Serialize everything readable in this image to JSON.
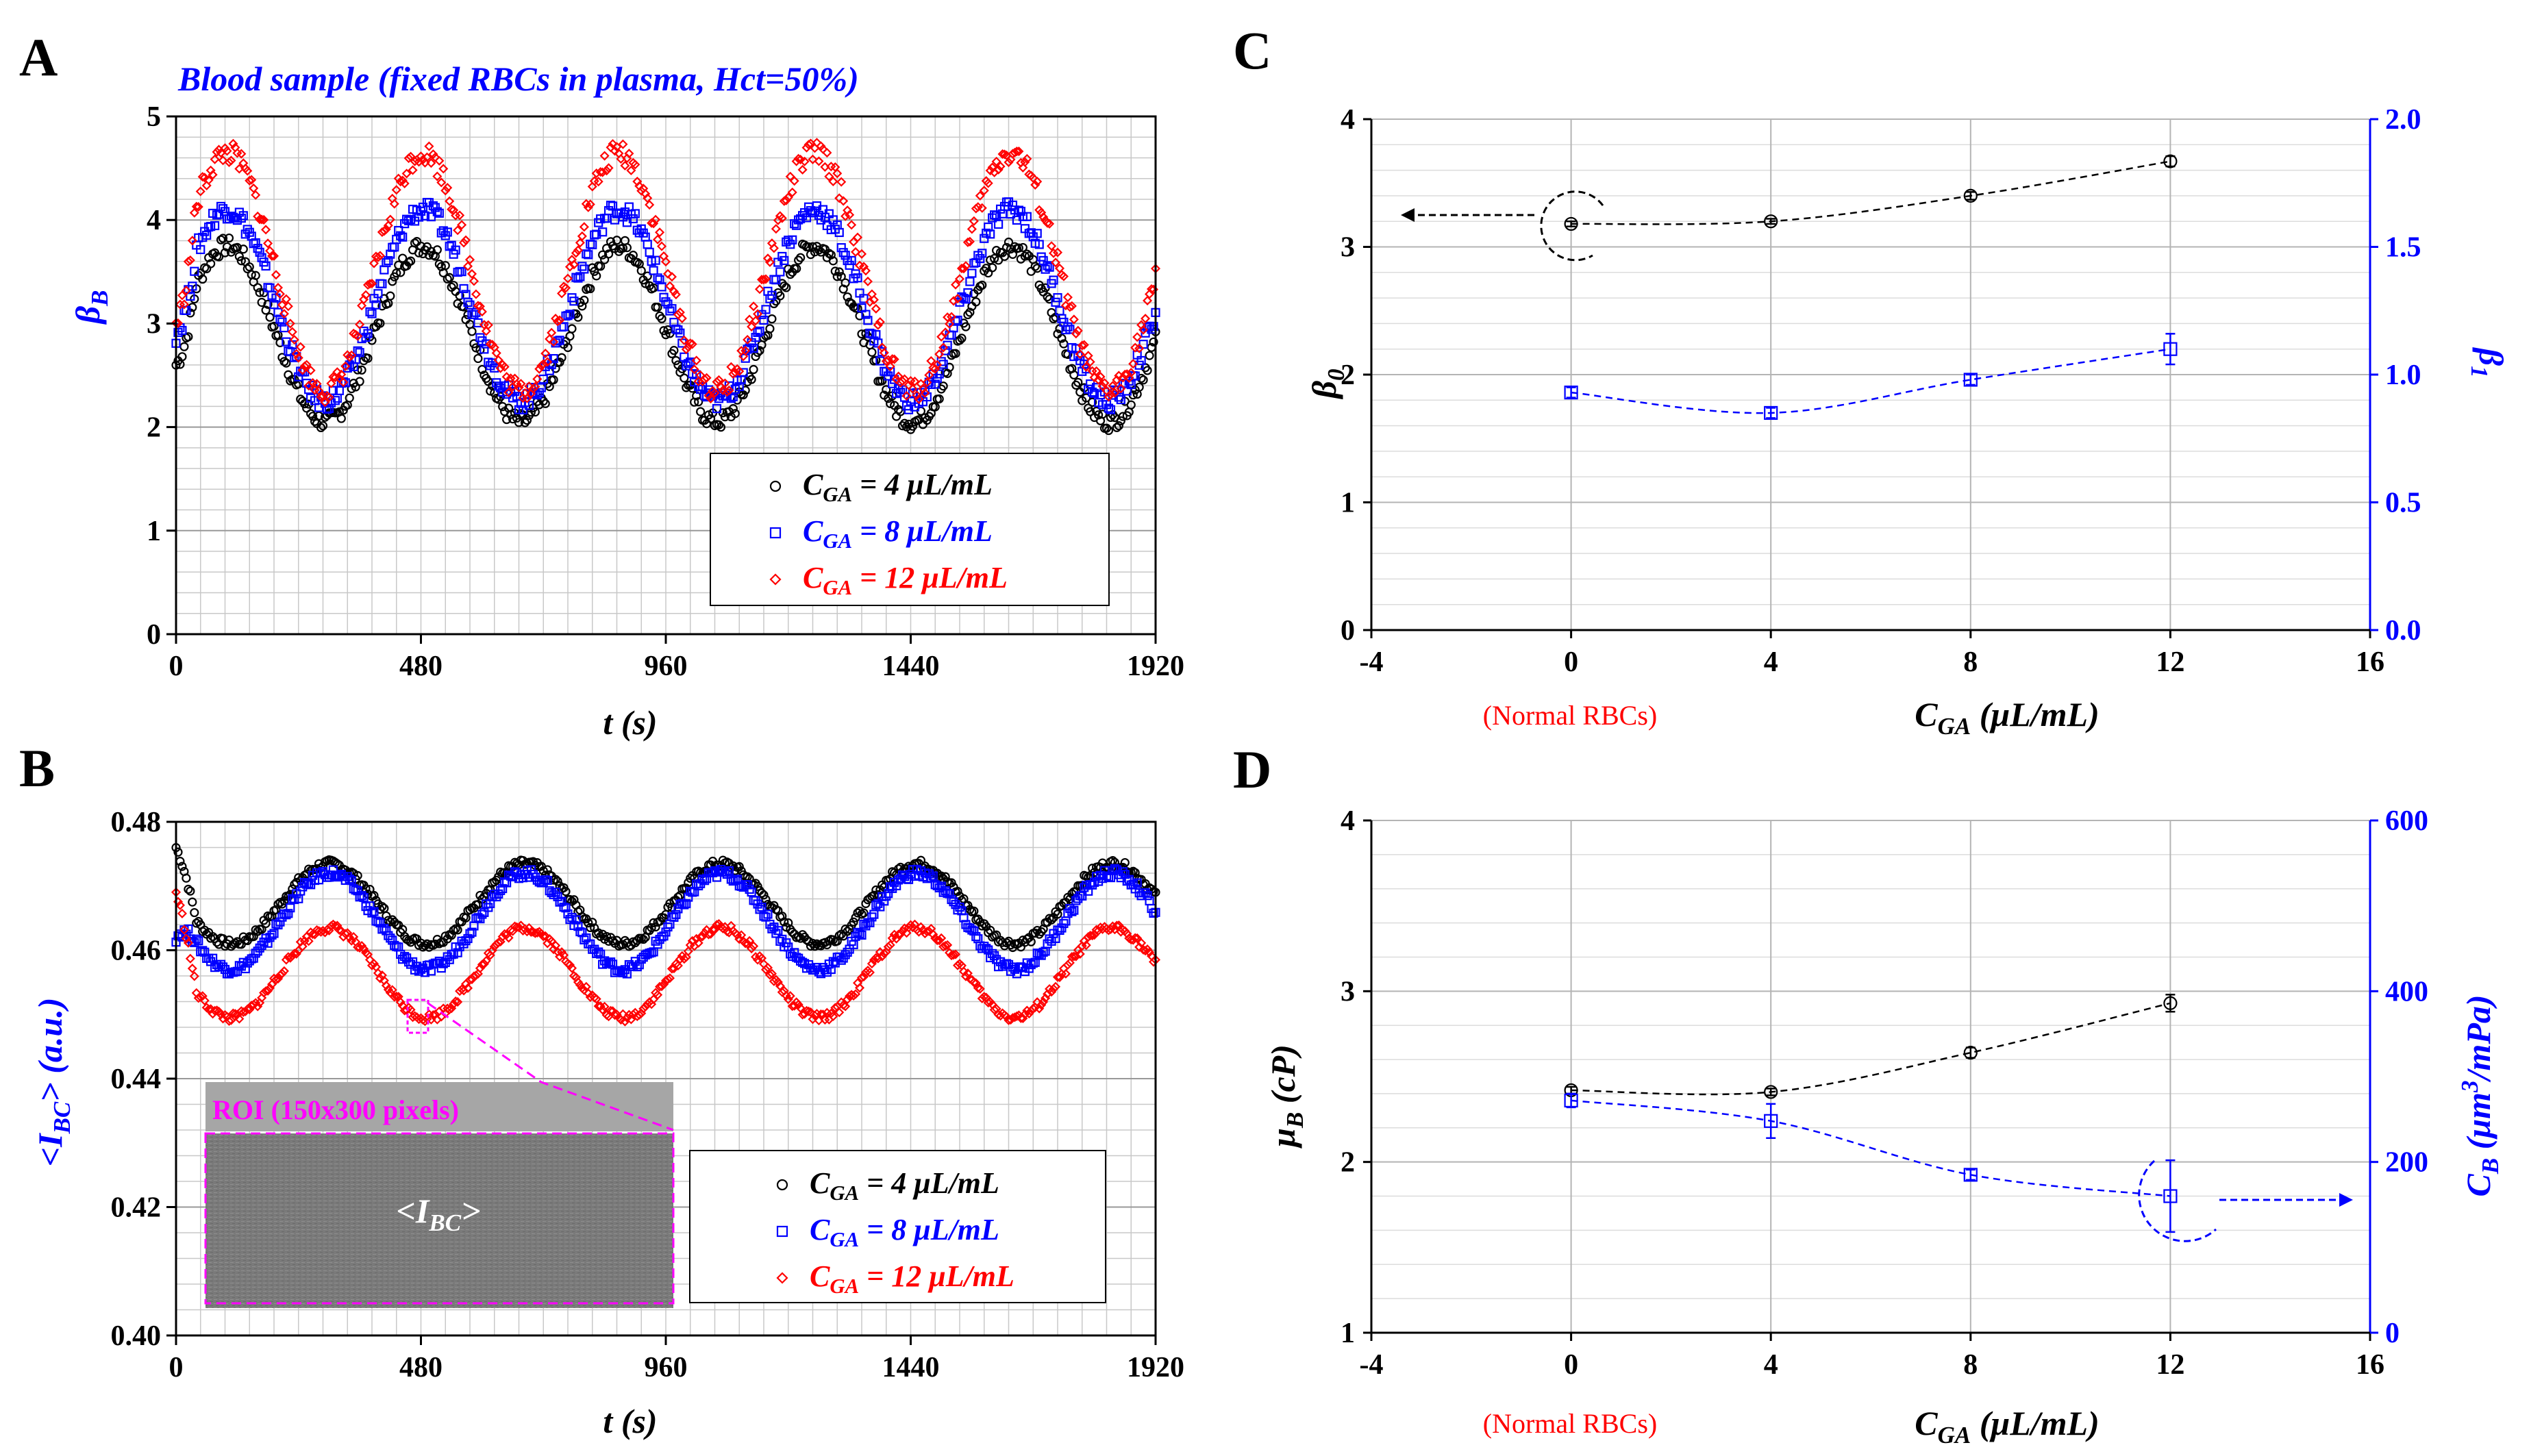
{
  "panels": {
    "A": {
      "label": "A",
      "title": "Blood sample (fixed RBCs in plasma, Hct=50%)",
      "xlabel": "t (s)",
      "ylabel_main": "β",
      "ylabel_sub": "B"
    },
    "B": {
      "label": "B",
      "xlabel": "t (s)",
      "ylabel": "<I",
      "ylabel_sub": "BC",
      "ylabel_tail": "> (a.u.)",
      "roi_label": "ROI (150x300 pixels)",
      "roi_text": "<I",
      "roi_sub": "BC",
      "roi_tail": ">"
    },
    "C": {
      "label": "C",
      "xlabel_main": "C",
      "xlabel_sub": "GA",
      "xlabel_tail": " (μL/mL)",
      "normal_label": "(Normal RBCs)",
      "ylabel_left": "β",
      "ylabel_left_sub": "0",
      "ylabel_right": "β",
      "ylabel_right_sub": "1"
    },
    "D": {
      "label": "D",
      "xlabel_main": "C",
      "xlabel_sub": "GA",
      "xlabel_tail": " (μL/mL)",
      "normal_label": "(Normal RBCs)",
      "ylabel_left": "μ",
      "ylabel_left_sub": "B",
      "ylabel_left_tail": " (cP)",
      "ylabel_right": "C",
      "ylabel_right_sub": "B",
      "ylabel_right_tail1": " (μm",
      "ylabel_right_sup": "3",
      "ylabel_right_tail2": "/mPa)"
    }
  },
  "legend": [
    {
      "prefix": "C",
      "sub": "GA",
      "suffix": " = 4 μL/mL",
      "color": "#000000",
      "marker": "circle"
    },
    {
      "prefix": "C",
      "sub": "GA",
      "suffix": " = 8 μL/mL",
      "color": "#0000ff",
      "marker": "square"
    },
    {
      "prefix": "C",
      "sub": "GA",
      "suffix": " = 12 μL/mL",
      "color": "#ff0000",
      "marker": "diamond"
    }
  ],
  "colors": {
    "black": "#000000",
    "blue": "#0000ff",
    "red": "#ff0000",
    "magenta": "#ff00ff",
    "grid": "#c8c8c8"
  },
  "chart_data": [
    {
      "panel": "A",
      "type": "scatter",
      "title": "Blood sample (fixed RBCs in plasma, Hct=50%)",
      "xlabel": "t (s)",
      "ylabel": "βB",
      "xlim": [
        0,
        1920
      ],
      "ylim": [
        0,
        5
      ],
      "xticks": [
        0,
        480,
        960,
        1440,
        1920
      ],
      "yticks": [
        0,
        1,
        2,
        3,
        4,
        5
      ],
      "period_s": 384,
      "series": [
        {
          "name": "CGA = 4 μL/mL",
          "color": "#000000",
          "marker": "circle",
          "min": 2.05,
          "max": 3.75,
          "phase_peak_s": 100,
          "start": 2.6
        },
        {
          "name": "CGA = 8 μL/mL",
          "color": "#0000ff",
          "marker": "square",
          "min": 2.25,
          "max": 4.1,
          "phase_peak_s": 100,
          "start": 2.9
        },
        {
          "name": "CGA = 12 μL/mL",
          "color": "#ff0000",
          "marker": "diamond",
          "min": 2.35,
          "max": 4.65,
          "phase_peak_s": 100,
          "start": 3.0
        }
      ]
    },
    {
      "panel": "B",
      "type": "scatter",
      "xlabel": "t (s)",
      "ylabel": "<IBC> (a.u.)",
      "xlim": [
        0,
        1920
      ],
      "ylim": [
        0.4,
        0.48
      ],
      "xticks": [
        0,
        480,
        960,
        1440,
        1920
      ],
      "yticks": [
        0.4,
        0.42,
        0.44,
        0.46,
        0.48
      ],
      "period_s": 384,
      "series": [
        {
          "name": "CGA = 4 μL/mL",
          "color": "#000000",
          "marker": "circle",
          "min": 0.461,
          "max": 0.4735,
          "phase_peak_s": 300,
          "start": 0.476
        },
        {
          "name": "CGA = 8 μL/mL",
          "color": "#0000ff",
          "marker": "square",
          "min": 0.457,
          "max": 0.472,
          "phase_peak_s": 300,
          "start": 0.462
        },
        {
          "name": "CGA = 12 μL/mL",
          "color": "#ff0000",
          "marker": "diamond",
          "min": 0.4495,
          "max": 0.4635,
          "phase_peak_s": 300,
          "start": 0.469
        }
      ]
    },
    {
      "panel": "C",
      "type": "scatter",
      "xlabel": "CGA (μL/mL)",
      "ylabel": "β0",
      "ylabel_right": "β1",
      "xlim": [
        -4,
        16
      ],
      "ylim": [
        0,
        4
      ],
      "ylim_right": [
        0,
        2
      ],
      "xticks": [
        -4,
        0,
        4,
        8,
        12,
        16
      ],
      "yticks": [
        0,
        1,
        2,
        3,
        4
      ],
      "yticks_right": [
        "0.0",
        "0.5",
        "1.0",
        "1.5",
        "2.0"
      ],
      "series": [
        {
          "name": "β0",
          "axis": "left",
          "color": "#000000",
          "marker": "circle",
          "x": [
            0,
            4,
            8,
            12
          ],
          "y": [
            3.18,
            3.2,
            3.4,
            3.67
          ],
          "err": [
            0.02,
            0.02,
            0.03,
            0.04
          ]
        },
        {
          "name": "β1",
          "axis": "right",
          "color": "#0000ff",
          "marker": "square",
          "x": [
            0,
            4,
            8,
            12
          ],
          "y": [
            0.93,
            0.85,
            0.98,
            1.1
          ],
          "err": [
            0.02,
            0.02,
            0.02,
            0.06
          ]
        }
      ]
    },
    {
      "panel": "D",
      "type": "scatter",
      "xlabel": "CGA (μL/mL)",
      "ylabel": "μB (cP)",
      "ylabel_right": "CB (μm3/mPa)",
      "xlim": [
        -4,
        16
      ],
      "ylim": [
        1,
        4
      ],
      "ylim_right": [
        0,
        600
      ],
      "xticks": [
        -4,
        0,
        4,
        8,
        12,
        16
      ],
      "yticks": [
        1,
        2,
        3,
        4
      ],
      "yticks_right": [
        0,
        200,
        400,
        600
      ],
      "series": [
        {
          "name": "μB",
          "axis": "left",
          "color": "#000000",
          "marker": "circle",
          "x": [
            0,
            4,
            8,
            12
          ],
          "y": [
            2.42,
            2.41,
            2.64,
            2.93
          ],
          "err": [
            0.02,
            0.02,
            0.03,
            0.05
          ]
        },
        {
          "name": "CB",
          "axis": "right",
          "color": "#0000ff",
          "marker": "square",
          "x": [
            0,
            4,
            8,
            12
          ],
          "y": [
            272,
            248,
            185,
            160
          ],
          "err": [
            8,
            20,
            6,
            42
          ]
        }
      ]
    }
  ]
}
